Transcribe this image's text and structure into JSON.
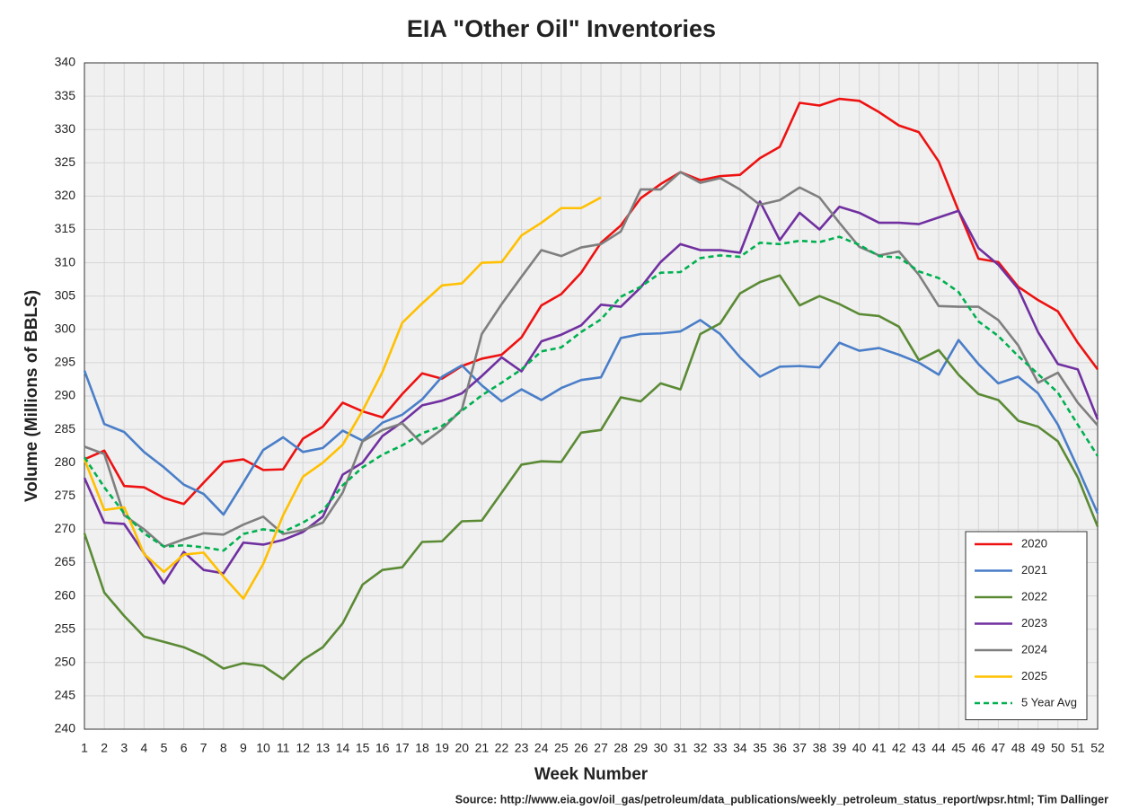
{
  "chart_data": {
    "type": "line",
    "title": "EIA \"Other Oil\" Inventories",
    "x_label": "Week Number",
    "y_label": "Volume (Millions of BBLS)",
    "source": "Source: http://www.eia.gov/oil_gas/petroleum/data_publications/weekly_petroleum_status_report/wpsr.html; Tim Dallinger",
    "x": [
      1,
      2,
      3,
      4,
      5,
      6,
      7,
      8,
      9,
      10,
      11,
      12,
      13,
      14,
      15,
      16,
      17,
      18,
      19,
      20,
      21,
      22,
      23,
      24,
      25,
      26,
      27,
      28,
      29,
      30,
      31,
      32,
      33,
      34,
      35,
      36,
      37,
      38,
      39,
      40,
      41,
      42,
      43,
      44,
      45,
      46,
      47,
      48,
      49,
      50,
      51,
      52
    ],
    "xlim": [
      1,
      52
    ],
    "xticks": [
      1,
      2,
      3,
      4,
      5,
      6,
      7,
      8,
      9,
      10,
      11,
      12,
      13,
      14,
      15,
      16,
      17,
      18,
      19,
      20,
      21,
      22,
      23,
      24,
      25,
      26,
      27,
      28,
      29,
      30,
      31,
      32,
      33,
      34,
      35,
      36,
      37,
      38,
      39,
      40,
      41,
      42,
      43,
      44,
      45,
      46,
      47,
      48,
      49,
      50,
      51,
      52
    ],
    "ylim": [
      240,
      340
    ],
    "yticks": [
      240,
      245,
      250,
      255,
      260,
      265,
      270,
      275,
      280,
      285,
      290,
      295,
      300,
      305,
      310,
      315,
      320,
      325,
      330,
      335,
      340
    ],
    "grid": true,
    "legend": "lower right",
    "series": [
      {
        "name": "2020",
        "color": "#ee1111",
        "values": [
          280.5,
          281.8,
          276.5,
          276.3,
          274.7,
          273.8,
          277,
          280.1,
          280.5,
          278.9,
          279,
          283.6,
          285.4,
          289,
          287.7,
          286.8,
          290.3,
          293.4,
          292.6,
          294.5,
          295.6,
          296.2,
          298.8,
          303.6,
          305.3,
          308.5,
          313,
          315.6,
          319.7,
          321.8,
          323.6,
          322.4,
          323,
          323.2,
          325.7,
          327.4,
          334,
          333.6,
          334.6,
          334.3,
          332.6,
          330.6,
          329.6,
          325.2,
          317.8,
          310.6,
          310.1,
          306.4,
          304.4,
          302.7,
          298,
          294
        ]
      },
      {
        "name": "2021",
        "color": "#4a7ec8",
        "values": [
          293.8,
          285.8,
          284.6,
          281.6,
          279.3,
          276.7,
          275.3,
          272.2,
          277,
          281.9,
          283.8,
          281.6,
          282.2,
          284.8,
          283.3,
          286,
          287.2,
          289.5,
          292.9,
          294.6,
          291.6,
          289.2,
          291,
          289.4,
          291.2,
          292.4,
          292.8,
          298.7,
          299.3,
          299.4,
          299.7,
          301.4,
          299.3,
          295.8,
          292.9,
          294.4,
          294.5,
          294.3,
          298,
          296.8,
          297.2,
          296.2,
          295,
          293.2,
          298.4,
          294.8,
          291.9,
          292.9,
          290.4,
          285.7,
          279.2,
          272.4
        ]
      },
      {
        "name": "2022",
        "color": "#5b8a35",
        "values": [
          269.4,
          260.5,
          257,
          253.9,
          253.1,
          252.3,
          251,
          249.1,
          249.9,
          249.5,
          247.5,
          250.4,
          252.3,
          255.9,
          261.7,
          263.9,
          264.3,
          268.1,
          268.2,
          271.2,
          271.3,
          275.5,
          279.7,
          280.2,
          280.1,
          284.5,
          284.9,
          289.8,
          289.2,
          291.9,
          291,
          299.3,
          300.9,
          305.4,
          307.1,
          308.1,
          303.6,
          305,
          303.8,
          302.3,
          302,
          300.4,
          295.4,
          296.9,
          293.2,
          290.3,
          289.4,
          286.3,
          285.4,
          283.2,
          277.8,
          270.4
        ]
      },
      {
        "name": "2023",
        "color": "#7030a0",
        "values": [
          277.7,
          271,
          270.8,
          266.4,
          261.9,
          266.6,
          263.9,
          263.4,
          268,
          267.7,
          268.4,
          269.6,
          271.9,
          278.2,
          280,
          284,
          286.1,
          288.6,
          289.3,
          290.4,
          293,
          295.8,
          293.7,
          298.2,
          299.2,
          300.6,
          303.7,
          303.4,
          306.3,
          310.1,
          312.8,
          311.9,
          311.9,
          311.5,
          319.2,
          313.4,
          317.5,
          315,
          318.4,
          317.5,
          316,
          316,
          315.8,
          316.8,
          317.8,
          312.2,
          309.7,
          306.1,
          299.6,
          294.8,
          294,
          286.5
        ]
      },
      {
        "name": "2024",
        "color": "#7f7f7f",
        "values": [
          282.4,
          281.3,
          272.1,
          270,
          267.4,
          268.5,
          269.4,
          269.2,
          270.7,
          271.9,
          269.3,
          269.9,
          271,
          275.5,
          283.2,
          284.9,
          285.9,
          282.8,
          285,
          288,
          299.3,
          303.8,
          307.9,
          311.9,
          311,
          312.3,
          312.8,
          314.7,
          321,
          321,
          323.6,
          322,
          322.7,
          321,
          318.7,
          319.4,
          321.3,
          319.8,
          316,
          312.4,
          311.1,
          311.7,
          308.2,
          303.5,
          303.4,
          303.4,
          301.4,
          297.6,
          292,
          293.5,
          289,
          285.6
        ]
      },
      {
        "name": "2025",
        "color": "#ffc000",
        "values": [
          280.5,
          272.9,
          273.3,
          266.3,
          263.6,
          266.2,
          266.5,
          262.9,
          259.6,
          264.8,
          272.1,
          277.9,
          280,
          282.7,
          287.8,
          293.6,
          301,
          303.9,
          306.6,
          306.9,
          310,
          310.1,
          314.1,
          316,
          318.2,
          318.2,
          319.8,
          null,
          null,
          null,
          null,
          null,
          null,
          null,
          null,
          null,
          null,
          null,
          null,
          null,
          null,
          null,
          null,
          null,
          null,
          null,
          null,
          null,
          null,
          null,
          null,
          null
        ]
      },
      {
        "name": "5 Year Avg",
        "color": "#00b050",
        "dashed": true,
        "values": [
          280.8,
          276.3,
          272.4,
          269.4,
          267.4,
          267.6,
          267.3,
          266.8,
          269.3,
          270,
          269.6,
          271,
          272.8,
          276.6,
          279.3,
          281.2,
          282.6,
          284.4,
          285.5,
          287.8,
          290.1,
          292,
          294,
          296.7,
          297.3,
          299.6,
          301.5,
          304.9,
          306.4,
          308.5,
          308.6,
          310.7,
          311.1,
          310.9,
          313,
          312.8,
          313.3,
          313.1,
          313.9,
          312.7,
          311,
          310.8,
          308.7,
          307.7,
          305.6,
          301.2,
          299,
          296,
          293.3,
          290.5,
          285.7,
          281
        ]
      }
    ]
  }
}
